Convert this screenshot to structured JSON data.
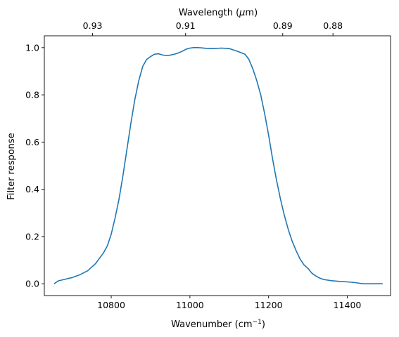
{
  "chart_data": {
    "type": "line",
    "xlabel": "Wavenumber (cm",
    "xlabel_sup": "−1",
    "xlabel_end": ")",
    "x2label": "Wavelength (",
    "x2label_mu": "μ",
    "x2label_end": "m)",
    "ylabel": "Filter response",
    "xlim": [
      10630,
      11510
    ],
    "ylim": [
      -0.05,
      1.05
    ],
    "x_ticks": [
      10800,
      11000,
      11200,
      11400
    ],
    "x_tick_labels": [
      "10800",
      "11000",
      "11200",
      "11400"
    ],
    "y_ticks": [
      0.0,
      0.2,
      0.4,
      0.6,
      0.8,
      1.0
    ],
    "y_tick_labels": [
      "0.0",
      "0.2",
      "0.4",
      "0.6",
      "0.8",
      "1.0"
    ],
    "top_ticks_um": [
      0.93,
      0.91,
      0.89,
      0.88
    ],
    "top_tick_labels": [
      "0.93",
      "0.91",
      "0.89",
      "0.88"
    ],
    "grid": false,
    "legend": "none",
    "color": "#1f77b4",
    "series": [
      {
        "x": [
          10655,
          10665,
          10680,
          10700,
          10720,
          10740,
          10760,
          10780,
          10790,
          10800,
          10810,
          10820,
          10830,
          10840,
          10850,
          10860,
          10870,
          10880,
          10890,
          10900,
          10910,
          10920,
          10930,
          10940,
          10950,
          10960,
          10970,
          10980,
          10990,
          11000,
          11010,
          11020,
          11030,
          11040,
          11060,
          11080,
          11100,
          11120,
          11140,
          11150,
          11160,
          11170,
          11180,
          11190,
          11200,
          11210,
          11220,
          11230,
          11240,
          11250,
          11260,
          11270,
          11280,
          11290,
          11300,
          11310,
          11320,
          11330,
          11340,
          11360,
          11380,
          11400,
          11420,
          11440,
          11460,
          11480,
          11490
        ],
        "y": [
          0.0,
          0.012,
          0.018,
          0.026,
          0.038,
          0.055,
          0.085,
          0.13,
          0.16,
          0.21,
          0.28,
          0.36,
          0.46,
          0.57,
          0.68,
          0.78,
          0.86,
          0.92,
          0.95,
          0.962,
          0.972,
          0.974,
          0.969,
          0.966,
          0.968,
          0.972,
          0.977,
          0.984,
          0.993,
          0.998,
          1.0,
          1.0,
          0.999,
          0.997,
          0.996,
          0.998,
          0.996,
          0.985,
          0.972,
          0.95,
          0.91,
          0.86,
          0.8,
          0.72,
          0.63,
          0.53,
          0.44,
          0.36,
          0.29,
          0.23,
          0.18,
          0.14,
          0.105,
          0.08,
          0.065,
          0.045,
          0.033,
          0.024,
          0.018,
          0.013,
          0.01,
          0.008,
          0.005,
          0.0,
          0.0,
          0.0,
          0.0
        ]
      }
    ]
  }
}
